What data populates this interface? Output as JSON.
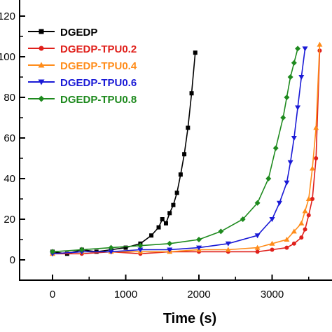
{
  "chart_data": {
    "type": "line",
    "title": "",
    "xlabel": "Time (s)",
    "ylabel": "",
    "xlim": [
      -400,
      3900
    ],
    "ylim": [
      -10,
      120
    ],
    "x_ticks": [
      0,
      1000,
      2000,
      3000
    ],
    "x_tick_labels": [
      "0",
      "1000",
      "2000",
      "3000"
    ],
    "y_ticks": [
      0,
      20,
      40,
      60,
      80,
      100,
      120
    ],
    "y_tick_labels": [
      "0",
      "20",
      "40",
      "60",
      "80",
      "100",
      "120"
    ],
    "legend_position": "top-left",
    "grid": false,
    "series": [
      {
        "name": "DGEDP",
        "color": "#000000",
        "marker": "square",
        "x": [
          0,
          200,
          400,
          600,
          800,
          1000,
          1200,
          1350,
          1450,
          1500,
          1550,
          1600,
          1650,
          1700,
          1750,
          1800,
          1850,
          1900,
          1950
        ],
        "y": [
          4,
          3,
          5,
          4,
          5,
          6,
          8,
          12,
          16,
          20,
          18,
          23,
          27,
          33,
          42,
          52,
          65,
          82,
          102
        ]
      },
      {
        "name": "DGEDP-TPU0.2",
        "color": "#e0201b",
        "marker": "circle",
        "x": [
          0,
          400,
          800,
          1200,
          1600,
          2000,
          2400,
          2800,
          3000,
          3200,
          3300,
          3400,
          3450,
          3500,
          3550,
          3600,
          3650
        ],
        "y": [
          3,
          3,
          4,
          3,
          4,
          4,
          4,
          4,
          5,
          6,
          8,
          11,
          15,
          22,
          30,
          50,
          103
        ]
      },
      {
        "name": "DGEDP-TPU0.4",
        "color": "#ff8c1a",
        "marker": "triangle-up",
        "x": [
          0,
          400,
          800,
          1200,
          1600,
          2000,
          2400,
          2800,
          3000,
          3200,
          3300,
          3400,
          3450,
          3500,
          3550,
          3600,
          3650
        ],
        "y": [
          3,
          4,
          4,
          4,
          4,
          5,
          5,
          6,
          8,
          10,
          14,
          18,
          24,
          30,
          45,
          65,
          106
        ]
      },
      {
        "name": "DGEDP-TPU0.6",
        "color": "#1a1ad6",
        "marker": "triangle-down",
        "x": [
          0,
          400,
          800,
          1200,
          1600,
          2000,
          2400,
          2800,
          3000,
          3100,
          3200,
          3250,
          3300,
          3350,
          3400,
          3450
        ],
        "y": [
          3,
          4,
          4,
          5,
          5,
          6,
          8,
          12,
          20,
          28,
          38,
          48,
          60,
          75,
          90,
          104
        ]
      },
      {
        "name": "DGEDP-TPU0.8",
        "color": "#1e8a1e",
        "marker": "diamond",
        "x": [
          0,
          400,
          800,
          1200,
          1600,
          2000,
          2300,
          2600,
          2800,
          2950,
          3050,
          3150,
          3200,
          3250,
          3300,
          3350
        ],
        "y": [
          4,
          5,
          6,
          7,
          8,
          10,
          14,
          20,
          28,
          40,
          55,
          70,
          80,
          90,
          97,
          104
        ]
      }
    ]
  }
}
